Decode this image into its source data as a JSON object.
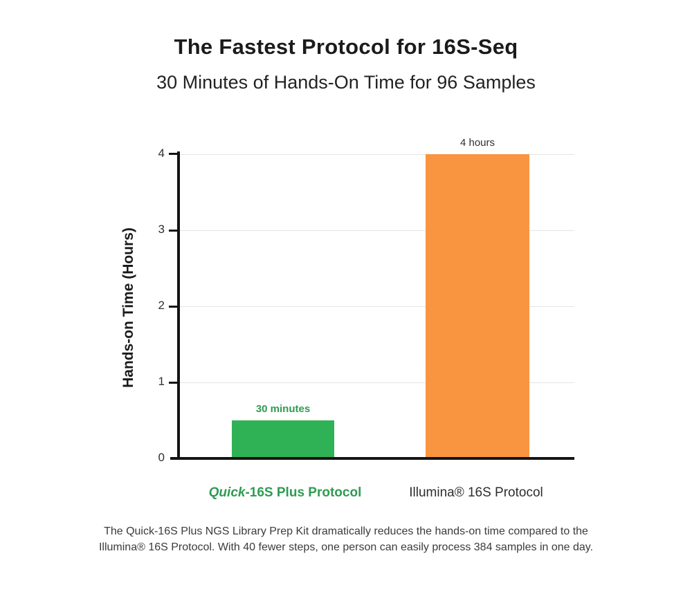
{
  "header": {
    "title": "The Fastest Protocol for 16S-Seq",
    "subtitle": "30 Minutes of Hands-On Time for 96 Samples"
  },
  "chart_data": {
    "type": "bar",
    "title": "The Fastest Protocol for 16S-Seq",
    "subtitle": "30 Minutes of Hands-On Time for 96 Samples",
    "xlabel": "",
    "ylabel": "Hands-on Time (Hours)",
    "ylim": [
      0,
      4
    ],
    "yticks": [
      0,
      1,
      2,
      3,
      4
    ],
    "ytick_labels_top_to_bottom": [
      "4",
      "3",
      "2",
      "1",
      "0"
    ],
    "grid": "horizontal",
    "legend": "none",
    "categories": [
      "Quick-16S Plus Protocol",
      "Illumina® 16S Protocol"
    ],
    "values": [
      0.5,
      4
    ],
    "value_unit": "hours",
    "bar_labels": [
      "30 minutes",
      "4 hours"
    ],
    "bar_colors": [
      "#2fb156",
      "#f99440"
    ],
    "category_label_parts": {
      "quick_italic": "Quick",
      "quick_rest": "-16S Plus Protocol",
      "illumina": "Illumina® 16S Protocol"
    }
  },
  "caption": {
    "text": "The Quick-16S Plus NGS Library Prep Kit dramatically reduces the hands-on time compared to the Illumina® 16S Protocol. With 40 fewer steps, one person can easily process 384 samples in one day."
  },
  "colors": {
    "green_bar": "#2fb156",
    "green_text": "#2e9b51",
    "orange_bar": "#f99440",
    "title_text": "#1b1b1b",
    "caption_text": "#3b3b3b",
    "gridline": "#e4e4e4",
    "axis": "#141414"
  }
}
